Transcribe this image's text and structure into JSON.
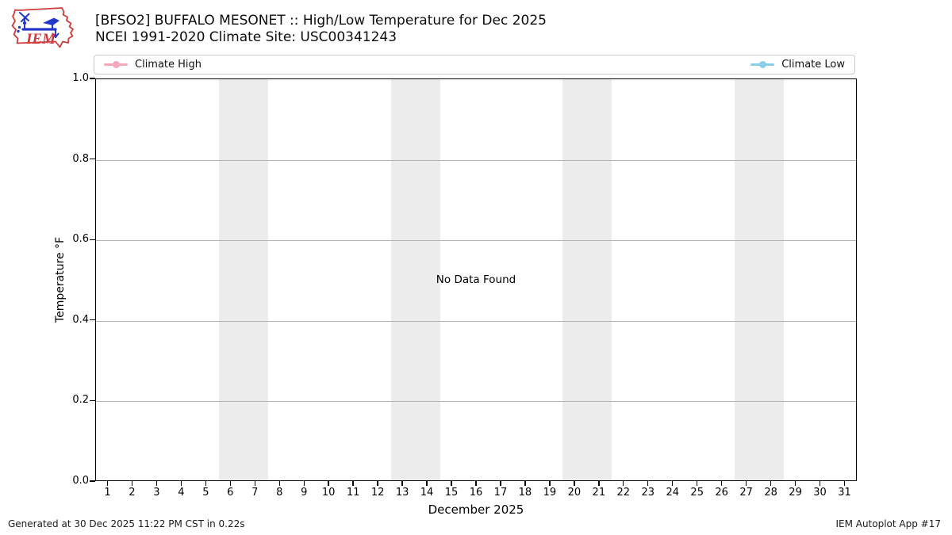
{
  "header": {
    "logo": {
      "text": "IEM",
      "outline_color": "#cf3a3a",
      "instrument_color": "#2438c8"
    },
    "title": "[BFSO2] BUFFALO MESONET :: High/Low Temperature for Dec 2025",
    "subtitle": "NCEI 1991-2020 Climate Site: USC00341243"
  },
  "chart_data": {
    "type": "line",
    "title": "[BFSO2] BUFFALO MESONET :: High/Low Temperature for Dec 2025",
    "subtitle": "NCEI 1991-2020 Climate Site: USC00341243",
    "xlabel": "December 2025",
    "ylabel": "Temperature °F",
    "xlim": [
      0.5,
      31.5
    ],
    "ylim": [
      0.0,
      1.0
    ],
    "xticks": [
      1,
      2,
      3,
      4,
      5,
      6,
      7,
      8,
      9,
      10,
      11,
      12,
      13,
      14,
      15,
      16,
      17,
      18,
      19,
      20,
      21,
      22,
      23,
      24,
      25,
      26,
      27,
      28,
      29,
      30,
      31
    ],
    "yticks": [
      {
        "label": "0.0",
        "value": 0.0
      },
      {
        "label": "0.2",
        "value": 0.2
      },
      {
        "label": "0.4",
        "value": 0.4
      },
      {
        "label": "0.6",
        "value": 0.6
      },
      {
        "label": "0.8",
        "value": 0.8
      },
      {
        "label": "1.0",
        "value": 1.0
      }
    ],
    "grid": true,
    "grid_color": "#b3b3b3",
    "weekend_day_spans": [
      [
        6,
        7
      ],
      [
        13,
        14
      ],
      [
        20,
        21
      ],
      [
        27,
        28
      ]
    ],
    "band_color": "#ececec",
    "legend_position": "top strip spanning plot width: Climate High left, Climate Low right",
    "series": [
      {
        "name": "Climate High",
        "color": "#f7a6b9",
        "marker": "circle",
        "values": []
      },
      {
        "name": "Climate Low",
        "color": "#87ceeb",
        "marker": "circle",
        "values": []
      }
    ],
    "no_data_message": "No Data Found"
  },
  "footer": {
    "generated": "Generated at 30 Dec 2025 11:22 PM CST in 0.22s",
    "credit": "IEM Autoplot App #17"
  }
}
